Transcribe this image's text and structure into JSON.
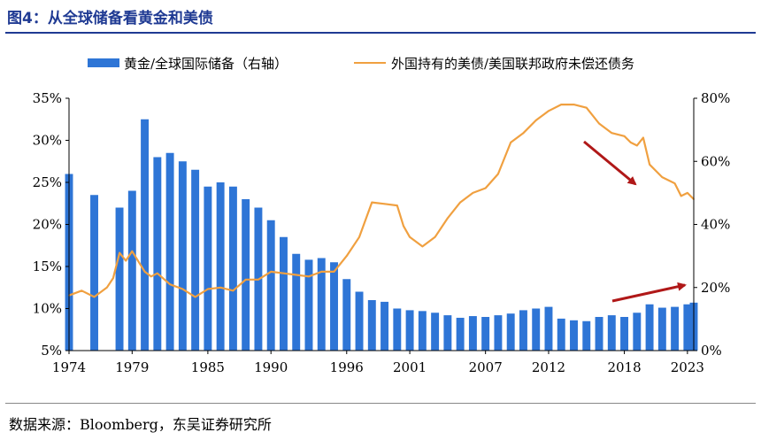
{
  "figure": {
    "title": "图4：从全球储备看黄金和美债",
    "source": "数据来源：Bloomberg，东吴证券研究所"
  },
  "colors": {
    "bar": "#2e75d6",
    "line": "#f0a040",
    "arrow": "#b01818",
    "axis": "#000000"
  },
  "chart_data": {
    "type": "bar+line",
    "title": "从全球储备看黄金和美债",
    "legend": [
      "黄金/全球国际储备（右轴）",
      "外国持有的美债/美国联邦政府未偿还债务"
    ],
    "x_range": [
      1974,
      2023.5
    ],
    "x_ticks": [
      1974,
      1979,
      1985,
      1990,
      1996,
      2001,
      2007,
      2012,
      2018,
      2023
    ],
    "left_axis": {
      "range": [
        5,
        35
      ],
      "ticks": [
        "5%",
        "10%",
        "15%",
        "20%",
        "25%",
        "30%",
        "35%"
      ],
      "values": [
        5,
        10,
        15,
        20,
        25,
        30,
        35
      ]
    },
    "right_axis": {
      "range": [
        0,
        80
      ],
      "ticks": [
        "0%",
        "20%",
        "40%",
        "60%",
        "80%"
      ],
      "values": [
        0,
        20,
        40,
        60,
        80
      ]
    },
    "series": [
      {
        "name": "黄金/全球国际储备（右轴）",
        "type": "bar",
        "axis": "left",
        "x": [
          1974,
          1976,
          1978,
          1979,
          1980,
          1981,
          1982,
          1983,
          1984,
          1985,
          1986,
          1987,
          1988,
          1989,
          1990,
          1991,
          1992,
          1993,
          1994,
          1995,
          1996,
          1997,
          1998,
          1999,
          2000,
          2001,
          2002,
          2003,
          2004,
          2005,
          2006,
          2007,
          2008,
          2009,
          2010,
          2011,
          2012,
          2013,
          2014,
          2015,
          2016,
          2017,
          2018,
          2019,
          2020,
          2021,
          2022,
          2023,
          2023.5
        ],
        "values": [
          26,
          23.5,
          22,
          24,
          32.5,
          28,
          28.5,
          27.5,
          26.5,
          24.5,
          25,
          24.5,
          23,
          22,
          20.5,
          18.5,
          16.5,
          15.8,
          16,
          15.5,
          13.5,
          12,
          11,
          10.8,
          10,
          9.8,
          9.7,
          9.5,
          9.2,
          8.9,
          9.1,
          9,
          9.2,
          9.4,
          9.8,
          10,
          10.2,
          8.8,
          8.6,
          8.5,
          9,
          9.2,
          9,
          9.5,
          10.5,
          10.1,
          10.2,
          10.5,
          10.7
        ]
      },
      {
        "name": "外国持有的美债/美国联邦政府未偿还债务",
        "type": "line",
        "axis": "right",
        "x": [
          1974,
          1975,
          1976,
          1977,
          1977.5,
          1978,
          1978.5,
          1979,
          1980,
          1980.5,
          1981,
          1982,
          1983,
          1984,
          1985,
          1986,
          1987,
          1988,
          1989,
          1990,
          1991,
          1992,
          1993,
          1994,
          1995,
          1996,
          1997,
          1998,
          1999,
          2000,
          2000.5,
          2001,
          2002,
          2003,
          2004,
          2005,
          2006,
          2007,
          2008,
          2009,
          2010,
          2011,
          2012,
          2013,
          2014,
          2015,
          2016,
          2017,
          2018,
          2018.5,
          2019,
          2019.5,
          2020,
          2021,
          2022,
          2022.5,
          2023,
          2023.5
        ],
        "values": [
          17.5,
          19,
          17,
          20,
          23,
          31,
          28.5,
          31.5,
          25,
          23.5,
          24.5,
          21,
          19.5,
          17,
          19.5,
          20,
          19,
          22.5,
          22.5,
          25,
          24.5,
          24,
          23.5,
          25,
          25,
          30,
          36,
          47,
          46.5,
          46,
          39.5,
          36,
          33,
          36,
          42,
          47,
          50,
          51.5,
          56,
          66,
          69,
          73,
          76,
          78,
          78,
          77,
          72,
          69,
          68,
          66,
          65,
          67.5,
          59,
          55,
          53,
          49,
          50,
          48
        ]
      }
    ],
    "annotations": [
      "arrow: line trending down (2016-2020)",
      "arrow: bars trending up (2017-2023)"
    ]
  }
}
